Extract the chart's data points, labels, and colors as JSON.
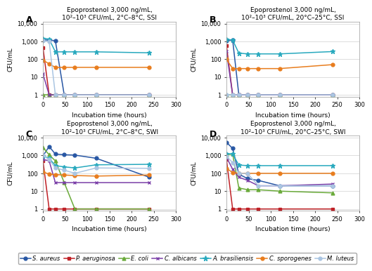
{
  "panels": [
    {
      "label": "A",
      "title": "Epoprostenol 3,000 ng/mL,\n10²–10³ CFU/mL, 2°C–8°C, SSI",
      "series": [
        {
          "name": "S. aureus",
          "color": "#2857a4",
          "marker": "o",
          "x": [
            0,
            14,
            28,
            48,
            72,
            120,
            240
          ],
          "y": [
            1200,
            1200,
            1100,
            1,
            1,
            1,
            1
          ]
        },
        {
          "name": "P. aeruginosa",
          "color": "#bf2026",
          "marker": "s",
          "x": [
            0,
            14,
            28,
            48,
            72,
            120,
            240
          ],
          "y": [
            450,
            1,
            1,
            1,
            1,
            1,
            1
          ]
        },
        {
          "name": "E. coli",
          "color": "#6aaa3a",
          "marker": "^",
          "x": [
            0,
            14,
            28,
            48,
            72,
            120,
            240
          ],
          "y": [
            1,
            1,
            1,
            1,
            1,
            1,
            1
          ]
        },
        {
          "name": "C. albicans",
          "color": "#7b3fa8",
          "marker": "x",
          "x": [
            0,
            14,
            28,
            48,
            72,
            120,
            240
          ],
          "y": [
            15,
            1,
            1,
            1,
            1,
            1,
            1
          ]
        },
        {
          "name": "A. brasiliensis",
          "color": "#28a9be",
          "marker": "*",
          "x": [
            0,
            14,
            28,
            48,
            72,
            120,
            240
          ],
          "y": [
            1500,
            1350,
            260,
            260,
            260,
            260,
            230
          ]
        },
        {
          "name": "C. sporogenes",
          "color": "#e87d1e",
          "marker": "o",
          "x": [
            0,
            14,
            28,
            48,
            72,
            120,
            240
          ],
          "y": [
            90,
            55,
            35,
            35,
            35,
            35,
            35
          ]
        },
        {
          "name": "M. luteus",
          "color": "#aac5e2",
          "marker": "o",
          "x": [
            0,
            14,
            28,
            48,
            72,
            120,
            240
          ],
          "y": [
            1100,
            1000,
            1,
            1,
            1,
            1,
            1
          ]
        }
      ]
    },
    {
      "label": "B",
      "title": "Epoprostenol 3,000 ng/mL,\n10²–10³ CFU/mL, 20°C–25°C, SSI",
      "series": [
        {
          "name": "S. aureus",
          "color": "#2857a4",
          "marker": "o",
          "x": [
            0,
            14,
            28,
            48,
            72,
            120,
            240
          ],
          "y": [
            1100,
            1200,
            1,
            1,
            1,
            1,
            1
          ]
        },
        {
          "name": "P. aeruginosa",
          "color": "#bf2026",
          "marker": "s",
          "x": [
            0,
            14,
            28,
            48,
            72,
            120,
            240
          ],
          "y": [
            600,
            1,
            1,
            1,
            1,
            1,
            1
          ]
        },
        {
          "name": "E. coli",
          "color": "#6aaa3a",
          "marker": "^",
          "x": [
            0,
            14,
            28,
            48,
            72,
            120,
            240
          ],
          "y": [
            1,
            1,
            1,
            1,
            1,
            1,
            1
          ]
        },
        {
          "name": "C. albicans",
          "color": "#7b3fa8",
          "marker": "x",
          "x": [
            0,
            14,
            28,
            48,
            72,
            120,
            240
          ],
          "y": [
            280,
            1,
            1,
            1,
            1,
            1,
            1
          ]
        },
        {
          "name": "A. brasiliensis",
          "color": "#28a9be",
          "marker": "*",
          "x": [
            0,
            14,
            28,
            48,
            72,
            120,
            240
          ],
          "y": [
            1300,
            1200,
            220,
            200,
            200,
            200,
            270
          ]
        },
        {
          "name": "C. sporogenes",
          "color": "#e87d1e",
          "marker": "o",
          "x": [
            0,
            14,
            28,
            48,
            72,
            120,
            240
          ],
          "y": [
            100,
            30,
            30,
            30,
            30,
            30,
            50
          ]
        },
        {
          "name": "M. luteus",
          "color": "#aac5e2",
          "marker": "o",
          "x": [
            0,
            14,
            28,
            48,
            72,
            120,
            240
          ],
          "y": [
            1,
            1,
            1,
            1,
            1,
            1,
            1
          ]
        }
      ]
    },
    {
      "label": "C",
      "title": "Epoprostenol 3,000 ng/mL,\n10²–10³ CFU/mL, 2°C–8°C, SWI",
      "series": [
        {
          "name": "S. aureus",
          "color": "#2857a4",
          "marker": "o",
          "x": [
            0,
            14,
            28,
            48,
            72,
            120,
            240
          ],
          "y": [
            950,
            3200,
            1200,
            1100,
            1050,
            700,
            60
          ]
        },
        {
          "name": "P. aeruginosa",
          "color": "#bf2026",
          "marker": "s",
          "x": [
            0,
            14,
            28,
            48,
            72,
            120,
            240
          ],
          "y": [
            500,
            1,
            1,
            1,
            1,
            1,
            1
          ]
        },
        {
          "name": "E. coli",
          "color": "#6aaa3a",
          "marker": "^",
          "x": [
            0,
            14,
            28,
            48,
            72,
            120,
            240
          ],
          "y": [
            2800,
            1100,
            500,
            30,
            1,
            1,
            1
          ]
        },
        {
          "name": "C. albicans",
          "color": "#7b3fa8",
          "marker": "x",
          "x": [
            0,
            14,
            28,
            48,
            72,
            120,
            240
          ],
          "y": [
            600,
            500,
            30,
            30,
            30,
            30,
            30
          ]
        },
        {
          "name": "A. brasiliensis",
          "color": "#28a9be",
          "marker": "*",
          "x": [
            0,
            14,
            28,
            48,
            72,
            120,
            240
          ],
          "y": [
            950,
            700,
            270,
            230,
            200,
            300,
            320
          ]
        },
        {
          "name": "C. sporogenes",
          "color": "#e87d1e",
          "marker": "o",
          "x": [
            0,
            14,
            28,
            48,
            72,
            120,
            240
          ],
          "y": [
            120,
            90,
            85,
            80,
            75,
            70,
            80
          ]
        },
        {
          "name": "M. luteus",
          "color": "#aac5e2",
          "marker": "o",
          "x": [
            0,
            14,
            28,
            48,
            72,
            120,
            240
          ],
          "y": [
            1000,
            600,
            200,
            150,
            100,
            200,
            190
          ]
        }
      ]
    },
    {
      "label": "D",
      "title": "Epoprostenol 3,000 ng/mL,\n10²–10³ CFU/mL, 20°C–25°C, SWI",
      "series": [
        {
          "name": "S. aureus",
          "color": "#2857a4",
          "marker": "o",
          "x": [
            0,
            14,
            28,
            48,
            72,
            120,
            240
          ],
          "y": [
            5500,
            2500,
            90,
            50,
            40,
            20,
            20
          ]
        },
        {
          "name": "P. aeruginosa",
          "color": "#bf2026",
          "marker": "s",
          "x": [
            0,
            14,
            28,
            48,
            72,
            120,
            240
          ],
          "y": [
            600,
            1,
            1,
            1,
            1,
            1,
            1
          ]
        },
        {
          "name": "E. coli",
          "color": "#6aaa3a",
          "marker": "^",
          "x": [
            0,
            14,
            28,
            48,
            72,
            120,
            240
          ],
          "y": [
            1100,
            1200,
            15,
            12,
            12,
            10,
            8
          ]
        },
        {
          "name": "C. albicans",
          "color": "#7b3fa8",
          "marker": "x",
          "x": [
            0,
            14,
            28,
            48,
            72,
            120,
            240
          ],
          "y": [
            800,
            170,
            60,
            40,
            20,
            20,
            25
          ]
        },
        {
          "name": "A. brasiliensis",
          "color": "#28a9be",
          "marker": "*",
          "x": [
            0,
            14,
            28,
            48,
            72,
            120,
            240
          ],
          "y": [
            1300,
            1200,
            290,
            270,
            270,
            270,
            270
          ]
        },
        {
          "name": "C. sporogenes",
          "color": "#e87d1e",
          "marker": "o",
          "x": [
            0,
            14,
            28,
            48,
            72,
            120,
            240
          ],
          "y": [
            190,
            110,
            100,
            100,
            100,
            100,
            100
          ]
        },
        {
          "name": "M. luteus",
          "color": "#aac5e2",
          "marker": "o",
          "x": [
            0,
            14,
            28,
            48,
            72,
            120,
            240
          ],
          "y": [
            900,
            400,
            100,
            95,
            20,
            20,
            20
          ]
        }
      ]
    }
  ],
  "legend_entries": [
    {
      "name": "S. aureus",
      "color": "#2857a4",
      "marker": "o"
    },
    {
      "name": "P. aeruginosa",
      "color": "#bf2026",
      "marker": "s"
    },
    {
      "name": "E. coli",
      "color": "#6aaa3a",
      "marker": "^"
    },
    {
      "name": "C. albicans",
      "color": "#7b3fa8",
      "marker": "x"
    },
    {
      "name": "A. brasiliensis",
      "color": "#28a9be",
      "marker": "*"
    },
    {
      "name": "C. sporogenes",
      "color": "#e87d1e",
      "marker": "o"
    },
    {
      "name": "M. luteus",
      "color": "#aac5e2",
      "marker": "o"
    }
  ],
  "ylabel": "CFU/mL",
  "xlabel": "Incubation time (hours)",
  "xlim": [
    0,
    300
  ],
  "xticks": [
    0,
    50,
    100,
    150,
    200,
    250,
    300
  ],
  "yticks_log": [
    1,
    10,
    100,
    1000,
    10000
  ],
  "linewidth": 1.1,
  "markersize": 3.5,
  "title_fontsize": 6.5,
  "label_fontsize": 6.5,
  "tick_fontsize": 6,
  "legend_fontsize": 6,
  "background_color": "#ffffff",
  "grid_color": "#d0d0d0"
}
